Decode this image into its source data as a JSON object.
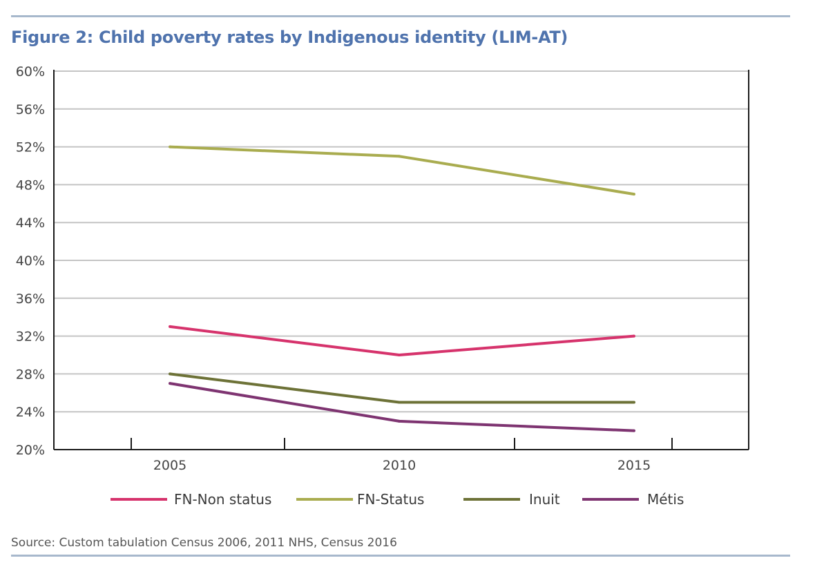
{
  "chart_data": {
    "type": "line",
    "title": "Figure 2: Child poverty rates by Indigenous identity (LIM-AT)",
    "x": [
      "2005",
      "2010",
      "2015"
    ],
    "xlabel": "",
    "ylabel": "",
    "ylim": [
      20,
      60
    ],
    "y_ticks": [
      "20%",
      "24%",
      "28%",
      "32%",
      "36%",
      "40%",
      "44%",
      "48%",
      "52%",
      "56%",
      "60%"
    ],
    "grid": true,
    "legend_position": "bottom",
    "series": [
      {
        "name": "FN-Non status",
        "color": "#d6336c",
        "values": [
          33,
          30,
          32
        ]
      },
      {
        "name": "FN-Status",
        "color": "#a9ac4f",
        "values": [
          52,
          51,
          47
        ]
      },
      {
        "name": "Inuit",
        "color": "#6d7237",
        "values": [
          28,
          25,
          25
        ]
      },
      {
        "name": "Métis",
        "color": "#7e3471",
        "values": [
          27,
          23,
          22
        ]
      }
    ],
    "source": "Source: Custom tabulation Census 2006, 2011 NHS, Census 2016"
  }
}
